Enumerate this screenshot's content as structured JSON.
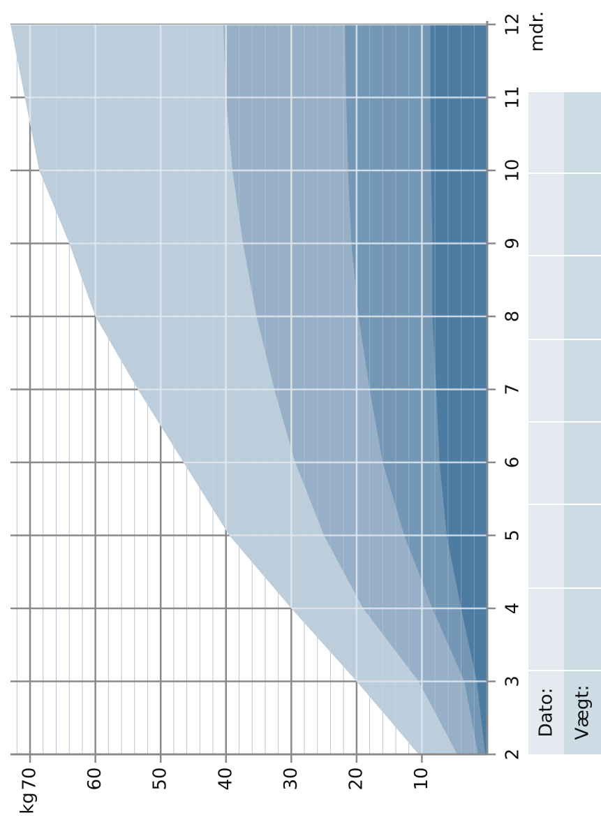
{
  "chart_data": {
    "type": "area",
    "x_label": "mdr.",
    "y_label": "kg",
    "x": [
      2,
      3,
      4,
      5,
      6,
      7,
      8,
      9,
      10,
      11,
      12
    ],
    "xlim": [
      2,
      12
    ],
    "xticks": [
      2,
      3,
      4,
      5,
      6,
      7,
      8,
      9,
      10,
      11,
      12
    ],
    "ylim": [
      0,
      73
    ],
    "yticks": [
      10,
      20,
      30,
      40,
      50,
      60,
      70
    ],
    "grid": true,
    "series": [
      {
        "color": "#bccddc",
        "values": [
          10.5,
          20,
          30,
          39.5,
          46.5,
          53.5,
          60,
          64,
          68.6,
          70.8,
          73
        ]
      },
      {
        "color": "#97b0c7",
        "values": [
          4.6,
          10.5,
          19,
          25,
          29.4,
          32.6,
          35.3,
          37.4,
          39,
          40,
          40.4
        ]
      },
      {
        "color": "#7497b5",
        "values": [
          1.4,
          3.5,
          8.4,
          12.7,
          16,
          18,
          19.7,
          20.8,
          21.3,
          21.6,
          21.8
        ]
      },
      {
        "color": "#4d7ca3",
        "values": [
          0.3,
          1.6,
          4,
          6.2,
          7.3,
          7.8,
          8.4,
          8.4,
          8.6,
          8.7,
          8.7
        ]
      }
    ]
  },
  "table": {
    "labels": [
      "Dato:",
      "Vægt:"
    ]
  }
}
